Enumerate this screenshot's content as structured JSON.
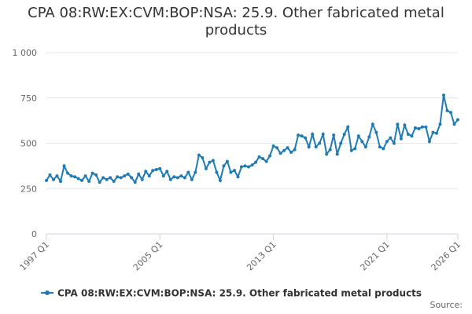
{
  "chart_data": {
    "type": "line",
    "title": "CPA 08:RW:EX:CVM:BOP:NSA: 25.9. Other fabricated metal products",
    "source": "Source:",
    "categories": [
      "1997 Q1",
      null,
      null,
      null,
      null,
      null,
      null,
      null,
      null,
      null,
      null,
      null,
      null,
      null,
      null,
      null,
      null,
      null,
      null,
      null,
      null,
      null,
      null,
      null,
      null,
      null,
      null,
      null,
      null,
      null,
      null,
      null,
      "2005 Q1",
      null,
      null,
      null,
      null,
      null,
      null,
      null,
      null,
      null,
      null,
      null,
      null,
      null,
      null,
      null,
      null,
      null,
      null,
      null,
      null,
      null,
      null,
      null,
      null,
      null,
      null,
      null,
      null,
      null,
      null,
      null,
      "2013 Q1",
      null,
      null,
      null,
      null,
      null,
      null,
      null,
      null,
      null,
      null,
      null,
      null,
      null,
      null,
      null,
      null,
      null,
      null,
      null,
      null,
      null,
      null,
      null,
      null,
      null,
      null,
      null,
      null,
      null,
      null,
      null,
      "2021 Q1",
      null,
      null,
      null,
      null,
      null,
      null,
      null,
      null,
      null,
      null,
      null,
      null,
      null,
      null,
      null,
      null,
      null,
      null,
      null,
      "2026 Q1"
    ],
    "series": [
      {
        "name": "CPA 08:RW:EX:CVM:BOP:NSA: 25.9. Other fabricated metal products",
        "color": "#1f7bb6",
        "values": [
          295,
          325,
          300,
          320,
          290,
          375,
          335,
          320,
          315,
          305,
          295,
          320,
          290,
          335,
          325,
          285,
          310,
          300,
          310,
          290,
          315,
          310,
          320,
          330,
          310,
          285,
          330,
          300,
          345,
          320,
          350,
          355,
          360,
          320,
          345,
          300,
          315,
          310,
          320,
          310,
          340,
          300,
          340,
          435,
          420,
          360,
          395,
          405,
          340,
          295,
          375,
          400,
          340,
          350,
          315,
          370,
          375,
          370,
          380,
          395,
          425,
          415,
          400,
          430,
          485,
          475,
          445,
          460,
          475,
          450,
          465,
          545,
          540,
          530,
          480,
          550,
          480,
          500,
          550,
          440,
          465,
          545,
          440,
          500,
          550,
          590,
          460,
          470,
          540,
          510,
          480,
          535,
          605,
          560,
          480,
          470,
          510,
          530,
          500,
          605,
          525,
          600,
          550,
          540,
          585,
          580,
          590,
          590,
          510,
          560,
          555,
          605,
          765,
          680,
          670,
          605,
          630
        ]
      }
    ],
    "ylim": [
      0,
      1000
    ],
    "yticks": [
      0,
      250,
      500,
      750,
      {
        "value": 1000,
        "label": "1 000"
      }
    ],
    "grid": true,
    "legend": "bottom"
  }
}
